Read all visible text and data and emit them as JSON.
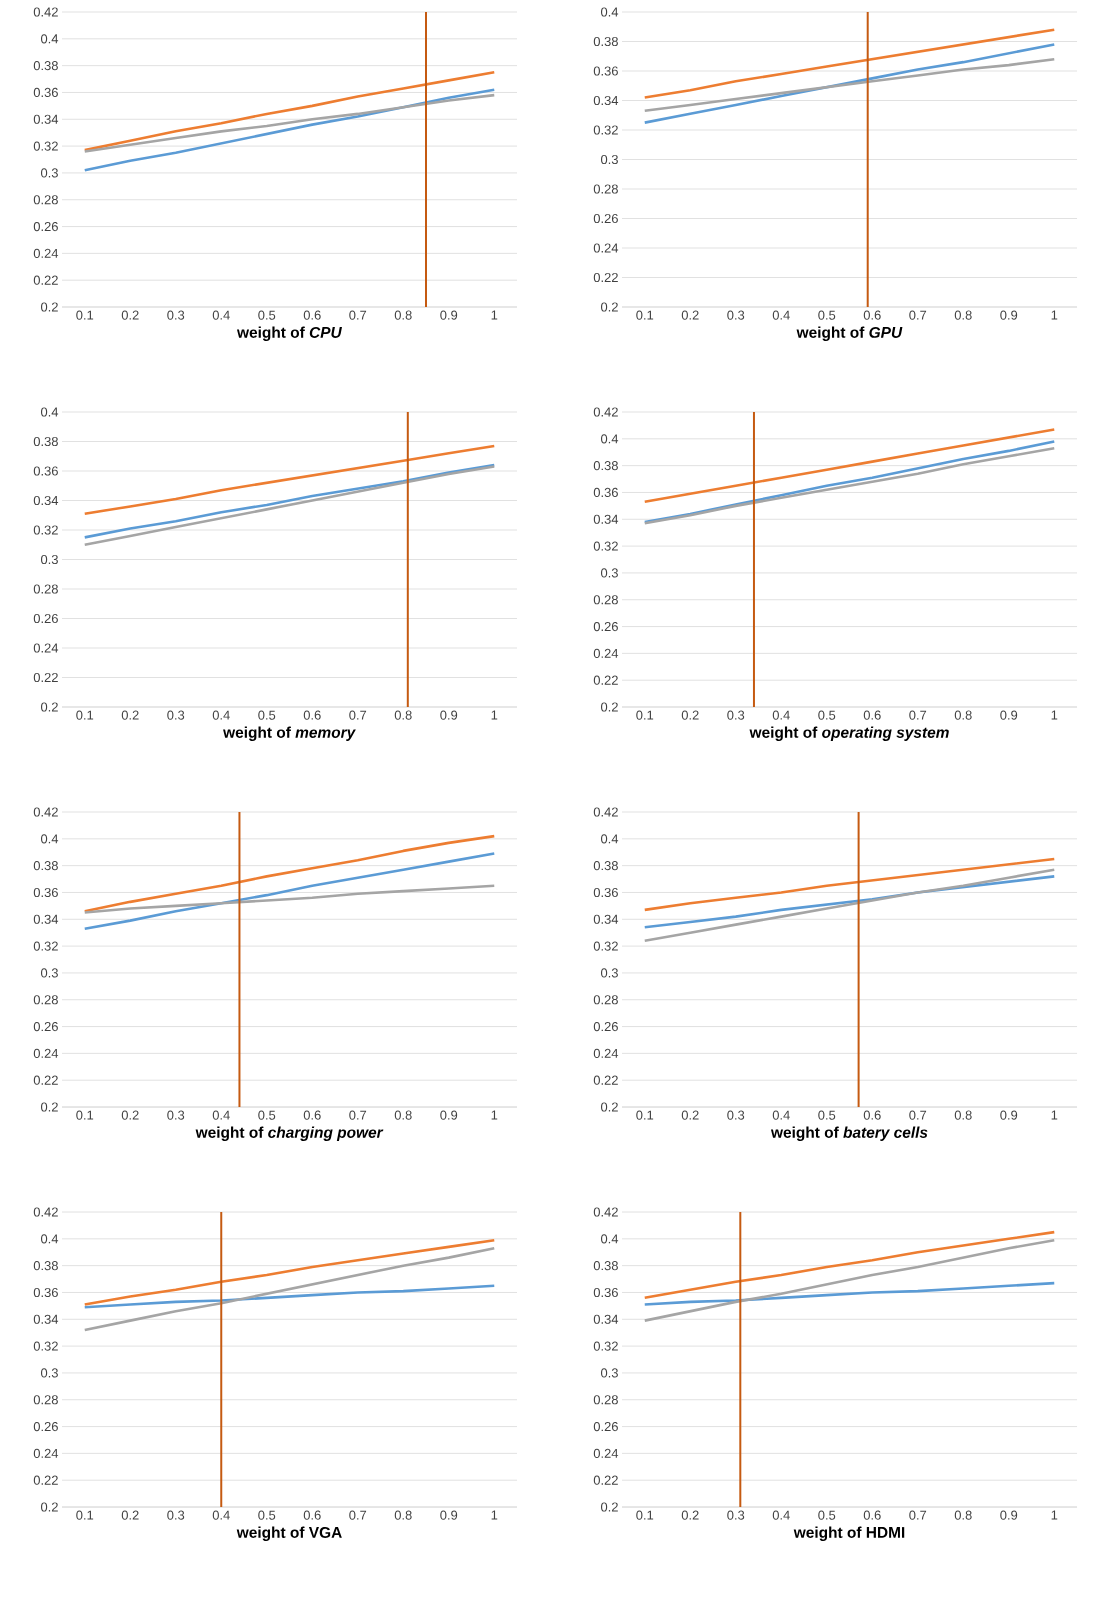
{
  "chart_data": [
    {
      "type": "line",
      "xlabel": "weight of *CPU*",
      "x": [
        0.1,
        0.2,
        0.3,
        0.4,
        0.5,
        0.6,
        0.7,
        0.8,
        0.9,
        1
      ],
      "xlim": [
        0.05,
        1.05
      ],
      "xticks": [
        0.1,
        0.2,
        0.3,
        0.4,
        0.5,
        0.6,
        0.7,
        0.8,
        0.9,
        1
      ],
      "ylim": [
        0.2,
        0.42
      ],
      "yticks": [
        0.2,
        0.22,
        0.24,
        0.26,
        0.28,
        0.3,
        0.32,
        0.34,
        0.36,
        0.38,
        0.4,
        0.42
      ],
      "grid": "y",
      "marker": "none",
      "line_style": "solid",
      "series": [
        {
          "color": "#5b9bd5",
          "values": [
            0.302,
            0.309,
            0.315,
            0.322,
            0.329,
            0.336,
            0.342,
            0.349,
            0.356,
            0.362
          ]
        },
        {
          "color": "#ed7d31",
          "values": [
            0.317,
            0.324,
            0.331,
            0.337,
            0.344,
            0.35,
            0.357,
            0.363,
            0.369,
            0.375
          ]
        },
        {
          "color": "#a5a5a5",
          "values": [
            0.316,
            0.321,
            0.326,
            0.331,
            0.335,
            0.34,
            0.344,
            0.349,
            0.354,
            0.358
          ]
        }
      ],
      "ref_lines": [
        {
          "axis": "x",
          "value": 0.85,
          "color": "#c55a11"
        }
      ]
    },
    {
      "type": "line",
      "xlabel": "weight of *GPU*",
      "x": [
        0.1,
        0.2,
        0.3,
        0.4,
        0.5,
        0.6,
        0.7,
        0.8,
        0.9,
        1
      ],
      "xlim": [
        0.05,
        1.05
      ],
      "xticks": [
        0.1,
        0.2,
        0.3,
        0.4,
        0.5,
        0.6,
        0.7,
        0.8,
        0.9,
        1
      ],
      "ylim": [
        0.2,
        0.4
      ],
      "yticks": [
        0.2,
        0.22,
        0.24,
        0.26,
        0.28,
        0.3,
        0.32,
        0.34,
        0.36,
        0.38,
        0.4
      ],
      "grid": "y",
      "marker": "none",
      "line_style": "solid",
      "series": [
        {
          "color": "#5b9bd5",
          "values": [
            0.325,
            0.331,
            0.337,
            0.343,
            0.349,
            0.355,
            0.361,
            0.366,
            0.372,
            0.378
          ]
        },
        {
          "color": "#ed7d31",
          "values": [
            0.342,
            0.347,
            0.353,
            0.358,
            0.363,
            0.368,
            0.373,
            0.378,
            0.383,
            0.388
          ]
        },
        {
          "color": "#a5a5a5",
          "values": [
            0.333,
            0.337,
            0.341,
            0.345,
            0.349,
            0.353,
            0.357,
            0.361,
            0.364,
            0.368
          ]
        }
      ],
      "ref_lines": [
        {
          "axis": "x",
          "value": 0.59,
          "color": "#c55a11"
        }
      ]
    },
    {
      "type": "line",
      "xlabel": "weight of *memory*",
      "x": [
        0.1,
        0.2,
        0.3,
        0.4,
        0.5,
        0.6,
        0.7,
        0.8,
        0.9,
        1
      ],
      "xlim": [
        0.05,
        1.05
      ],
      "xticks": [
        0.1,
        0.2,
        0.3,
        0.4,
        0.5,
        0.6,
        0.7,
        0.8,
        0.9,
        1
      ],
      "ylim": [
        0.2,
        0.4
      ],
      "yticks": [
        0.2,
        0.22,
        0.24,
        0.26,
        0.28,
        0.3,
        0.32,
        0.34,
        0.36,
        0.38,
        0.4
      ],
      "grid": "y",
      "marker": "none",
      "line_style": "solid",
      "series": [
        {
          "color": "#5b9bd5",
          "values": [
            0.315,
            0.321,
            0.326,
            0.332,
            0.337,
            0.343,
            0.348,
            0.353,
            0.359,
            0.364
          ]
        },
        {
          "color": "#ed7d31",
          "values": [
            0.331,
            0.336,
            0.341,
            0.347,
            0.352,
            0.357,
            0.362,
            0.367,
            0.372,
            0.377
          ]
        },
        {
          "color": "#a5a5a5",
          "values": [
            0.31,
            0.316,
            0.322,
            0.328,
            0.334,
            0.34,
            0.346,
            0.352,
            0.358,
            0.363
          ]
        }
      ],
      "ref_lines": [
        {
          "axis": "x",
          "value": 0.81,
          "color": "#c55a11"
        }
      ]
    },
    {
      "type": "line",
      "xlabel": "weight of *operating system*",
      "x": [
        0.1,
        0.2,
        0.3,
        0.4,
        0.5,
        0.6,
        0.7,
        0.8,
        0.9,
        1
      ],
      "xlim": [
        0.05,
        1.05
      ],
      "xticks": [
        0.1,
        0.2,
        0.3,
        0.4,
        0.5,
        0.6,
        0.7,
        0.8,
        0.9,
        1
      ],
      "ylim": [
        0.2,
        0.42
      ],
      "yticks": [
        0.2,
        0.22,
        0.24,
        0.26,
        0.28,
        0.3,
        0.32,
        0.34,
        0.36,
        0.38,
        0.4,
        0.42
      ],
      "grid": "y",
      "marker": "none",
      "line_style": "solid",
      "series": [
        {
          "color": "#5b9bd5",
          "values": [
            0.338,
            0.344,
            0.351,
            0.358,
            0.365,
            0.371,
            0.378,
            0.385,
            0.391,
            0.398
          ]
        },
        {
          "color": "#ed7d31",
          "values": [
            0.353,
            0.359,
            0.365,
            0.371,
            0.377,
            0.383,
            0.389,
            0.395,
            0.401,
            0.407
          ]
        },
        {
          "color": "#a5a5a5",
          "values": [
            0.337,
            0.343,
            0.35,
            0.356,
            0.362,
            0.368,
            0.374,
            0.381,
            0.387,
            0.393
          ]
        }
      ],
      "ref_lines": [
        {
          "axis": "x",
          "value": 0.34,
          "color": "#c55a11"
        }
      ]
    },
    {
      "type": "line",
      "xlabel": "weight of *charging power*",
      "x": [
        0.1,
        0.2,
        0.3,
        0.4,
        0.5,
        0.6,
        0.7,
        0.8,
        0.9,
        1
      ],
      "xlim": [
        0.05,
        1.05
      ],
      "xticks": [
        0.1,
        0.2,
        0.3,
        0.4,
        0.5,
        0.6,
        0.7,
        0.8,
        0.9,
        1
      ],
      "ylim": [
        0.2,
        0.42
      ],
      "yticks": [
        0.2,
        0.22,
        0.24,
        0.26,
        0.28,
        0.3,
        0.32,
        0.34,
        0.36,
        0.38,
        0.4,
        0.42
      ],
      "grid": "y",
      "marker": "none",
      "line_style": "solid",
      "series": [
        {
          "color": "#5b9bd5",
          "values": [
            0.333,
            0.339,
            0.346,
            0.352,
            0.358,
            0.365,
            0.371,
            0.377,
            0.383,
            0.389
          ]
        },
        {
          "color": "#ed7d31",
          "values": [
            0.346,
            0.353,
            0.359,
            0.365,
            0.372,
            0.378,
            0.384,
            0.391,
            0.397,
            0.402
          ]
        },
        {
          "color": "#a5a5a5",
          "values": [
            0.345,
            0.348,
            0.35,
            0.352,
            0.354,
            0.356,
            0.359,
            0.361,
            0.363,
            0.365
          ]
        }
      ],
      "ref_lines": [
        {
          "axis": "x",
          "value": 0.44,
          "color": "#c55a11"
        }
      ]
    },
    {
      "type": "line",
      "xlabel": "weight of  *batery cells*",
      "x": [
        0.1,
        0.2,
        0.3,
        0.4,
        0.5,
        0.6,
        0.7,
        0.8,
        0.9,
        1
      ],
      "xlim": [
        0.05,
        1.05
      ],
      "xticks": [
        0.1,
        0.2,
        0.3,
        0.4,
        0.5,
        0.6,
        0.7,
        0.8,
        0.9,
        1
      ],
      "ylim": [
        0.2,
        0.42
      ],
      "yticks": [
        0.2,
        0.22,
        0.24,
        0.26,
        0.28,
        0.3,
        0.32,
        0.34,
        0.36,
        0.38,
        0.4,
        0.42
      ],
      "grid": "y",
      "marker": "none",
      "line_style": "solid",
      "series": [
        {
          "color": "#5b9bd5",
          "values": [
            0.334,
            0.338,
            0.342,
            0.347,
            0.351,
            0.355,
            0.36,
            0.364,
            0.368,
            0.372
          ]
        },
        {
          "color": "#ed7d31",
          "values": [
            0.347,
            0.352,
            0.356,
            0.36,
            0.365,
            0.369,
            0.373,
            0.377,
            0.381,
            0.385
          ]
        },
        {
          "color": "#a5a5a5",
          "values": [
            0.324,
            0.33,
            0.336,
            0.342,
            0.348,
            0.354,
            0.36,
            0.365,
            0.371,
            0.377
          ]
        }
      ],
      "ref_lines": [
        {
          "axis": "x",
          "value": 0.57,
          "color": "#c55a11"
        }
      ]
    },
    {
      "type": "line",
      "xlabel": "weight of VGA",
      "x": [
        0.1,
        0.2,
        0.3,
        0.4,
        0.5,
        0.6,
        0.7,
        0.8,
        0.9,
        1
      ],
      "xlim": [
        0.05,
        1.05
      ],
      "xticks": [
        0.1,
        0.2,
        0.3,
        0.4,
        0.5,
        0.6,
        0.7,
        0.8,
        0.9,
        1
      ],
      "ylim": [
        0.2,
        0.42
      ],
      "yticks": [
        0.2,
        0.22,
        0.24,
        0.26,
        0.28,
        0.3,
        0.32,
        0.34,
        0.36,
        0.38,
        0.4,
        0.42
      ],
      "grid": "y",
      "marker": "none",
      "line_style": "solid",
      "series": [
        {
          "color": "#5b9bd5",
          "values": [
            0.349,
            0.351,
            0.353,
            0.354,
            0.356,
            0.358,
            0.36,
            0.361,
            0.363,
            0.365
          ]
        },
        {
          "color": "#ed7d31",
          "values": [
            0.351,
            0.357,
            0.362,
            0.368,
            0.373,
            0.379,
            0.384,
            0.389,
            0.394,
            0.399
          ]
        },
        {
          "color": "#a5a5a5",
          "values": [
            0.332,
            0.339,
            0.346,
            0.352,
            0.359,
            0.366,
            0.373,
            0.38,
            0.386,
            0.393
          ]
        }
      ],
      "ref_lines": [
        {
          "axis": "x",
          "value": 0.4,
          "color": "#c55a11"
        }
      ]
    },
    {
      "type": "line",
      "xlabel": "weight of HDMI",
      "x": [
        0.1,
        0.2,
        0.3,
        0.4,
        0.5,
        0.6,
        0.7,
        0.8,
        0.9,
        1
      ],
      "xlim": [
        0.05,
        1.05
      ],
      "xticks": [
        0.1,
        0.2,
        0.3,
        0.4,
        0.5,
        0.6,
        0.7,
        0.8,
        0.9,
        1
      ],
      "ylim": [
        0.2,
        0.42
      ],
      "yticks": [
        0.2,
        0.22,
        0.24,
        0.26,
        0.28,
        0.3,
        0.32,
        0.34,
        0.36,
        0.38,
        0.4,
        0.42
      ],
      "grid": "y",
      "marker": "none",
      "line_style": "solid",
      "series": [
        {
          "color": "#5b9bd5",
          "values": [
            0.351,
            0.353,
            0.354,
            0.356,
            0.358,
            0.36,
            0.361,
            0.363,
            0.365,
            0.367
          ]
        },
        {
          "color": "#ed7d31",
          "values": [
            0.356,
            0.362,
            0.368,
            0.373,
            0.379,
            0.384,
            0.39,
            0.395,
            0.4,
            0.405
          ]
        },
        {
          "color": "#a5a5a5",
          "values": [
            0.339,
            0.346,
            0.353,
            0.359,
            0.366,
            0.373,
            0.379,
            0.386,
            0.393,
            0.399
          ]
        }
      ],
      "ref_lines": [
        {
          "axis": "x",
          "value": 0.31,
          "color": "#c55a11"
        }
      ]
    }
  ]
}
